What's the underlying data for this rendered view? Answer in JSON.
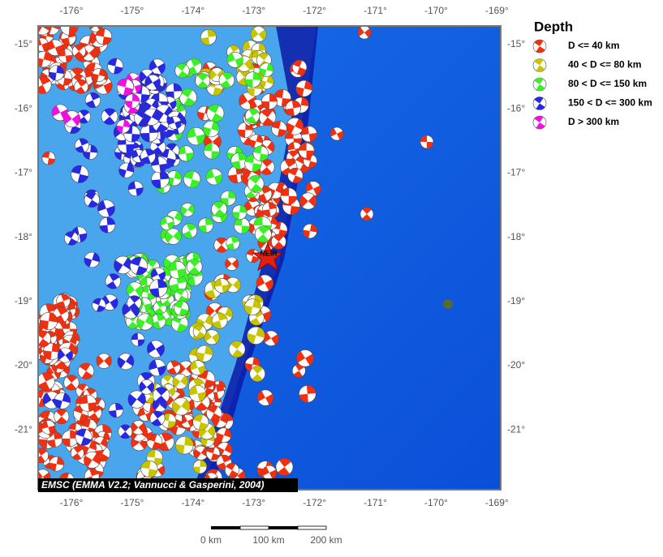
{
  "map": {
    "lon_labels": [
      "-176°",
      "-175°",
      "-174°",
      "-173°",
      "-172°",
      "-171°",
      "-170°",
      "-169°"
    ],
    "lat_labels": [
      "-15°",
      "-16°",
      "-17°",
      "-18°",
      "-19°",
      "-20°",
      "-21°"
    ],
    "marker": "NEIR",
    "credit": "EMSC (EMMA V2.2; Vannucci & Gasperini, 2004)"
  },
  "legend": {
    "title": "Depth",
    "items": [
      {
        "label": "D <= 40 km",
        "color": "#f03010"
      },
      {
        "label": "40 < D <= 80 km",
        "color": "#c8c400"
      },
      {
        "label": "80 < D <= 150 km",
        "color": "#3cf028"
      },
      {
        "label": "150 < D <= 300 km",
        "color": "#2828e0"
      },
      {
        "label": "D > 300 km",
        "color": "#f010e0"
      }
    ]
  },
  "scale_bar": [
    "0 km",
    "100 km",
    "200 km"
  ]
}
